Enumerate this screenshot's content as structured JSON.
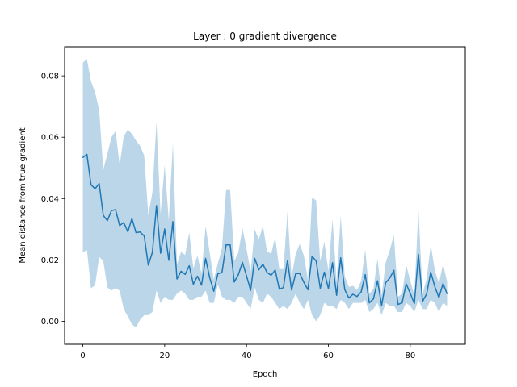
{
  "chart_data": {
    "type": "line",
    "title": "Layer : 0 gradient divergence",
    "xlabel": "Epoch",
    "ylabel": "Mean distance from true gradient",
    "xlim": [
      -4.45,
      93.45
    ],
    "ylim": [
      -0.0075,
      0.0895
    ],
    "xticks": [
      0,
      20,
      40,
      60,
      80
    ],
    "xtick_labels": [
      "0",
      "20",
      "40",
      "60",
      "80"
    ],
    "yticks": [
      0.0,
      0.02,
      0.04,
      0.06,
      0.08
    ],
    "ytick_labels": [
      "0.00",
      "0.02",
      "0.04",
      "0.06",
      "0.08"
    ],
    "grid": false,
    "colors": {
      "line": "#1f77b4",
      "band": "#1f77b4",
      "band_opacity": 0.3
    },
    "x": [
      0,
      1,
      2,
      3,
      4,
      5,
      6,
      7,
      8,
      9,
      10,
      11,
      12,
      13,
      14,
      15,
      16,
      17,
      18,
      19,
      20,
      21,
      22,
      23,
      24,
      25,
      26,
      27,
      28,
      29,
      30,
      31,
      32,
      33,
      34,
      35,
      36,
      37,
      38,
      39,
      40,
      41,
      42,
      43,
      44,
      45,
      46,
      47,
      48,
      49,
      50,
      51,
      52,
      53,
      54,
      55,
      56,
      57,
      58,
      59,
      60,
      61,
      62,
      63,
      64,
      65,
      66,
      67,
      68,
      69,
      70,
      71,
      72,
      73,
      74,
      75,
      76,
      77,
      78,
      79,
      80,
      81,
      82,
      83,
      84,
      85,
      86,
      87,
      88,
      89
    ],
    "series": [
      {
        "values": [
          0.0534,
          0.0544,
          0.0445,
          0.0432,
          0.0449,
          0.0345,
          0.0328,
          0.0361,
          0.0364,
          0.0312,
          0.0322,
          0.0292,
          0.0335,
          0.0289,
          0.0291,
          0.0278,
          0.0183,
          0.0225,
          0.0377,
          0.0222,
          0.0301,
          0.0199,
          0.0325,
          0.0138,
          0.0163,
          0.0153,
          0.0181,
          0.0121,
          0.0147,
          0.0118,
          0.0205,
          0.0142,
          0.0098,
          0.0155,
          0.0159,
          0.0249,
          0.0249,
          0.0128,
          0.0152,
          0.0192,
          0.0148,
          0.0101,
          0.0205,
          0.0168,
          0.0186,
          0.0159,
          0.015,
          0.0167,
          0.0105,
          0.011,
          0.0199,
          0.0102,
          0.0155,
          0.0156,
          0.0127,
          0.0103,
          0.0212,
          0.0197,
          0.0108,
          0.016,
          0.0107,
          0.0191,
          0.0085,
          0.0207,
          0.0103,
          0.0076,
          0.0088,
          0.0081,
          0.0096,
          0.0152,
          0.006,
          0.0073,
          0.0132,
          0.0052,
          0.0126,
          0.0141,
          0.0166,
          0.0055,
          0.006,
          0.0122,
          0.0091,
          0.0058,
          0.0218,
          0.0065,
          0.0089,
          0.016,
          0.0113,
          0.0077,
          0.0123,
          0.009
        ],
        "lower": [
          0.0225,
          0.0233,
          0.0107,
          0.0118,
          0.021,
          0.0196,
          0.011,
          0.01,
          0.0108,
          0.01,
          0.004,
          0.0015,
          -0.001,
          -0.002,
          0.0005,
          0.002,
          0.002,
          0.003,
          0.01,
          0.006,
          0.008,
          0.007,
          0.007,
          0.009,
          0.01,
          0.009,
          0.007,
          0.007,
          0.008,
          0.008,
          0.01,
          0.006,
          0.006,
          0.012,
          0.008,
          0.007,
          0.007,
          0.006,
          0.008,
          0.008,
          0.006,
          0.004,
          0.011,
          0.007,
          0.006,
          0.009,
          0.008,
          0.006,
          0.004,
          0.005,
          0.004,
          0.006,
          0.009,
          0.006,
          0.004,
          0.007,
          0.002,
          0.0,
          0.002,
          0.006,
          0.005,
          0.005,
          0.004,
          0.007,
          0.006,
          0.004,
          0.006,
          0.006,
          0.006,
          0.007,
          0.003,
          0.004,
          0.006,
          0.002,
          0.006,
          0.005,
          0.005,
          0.003,
          0.003,
          0.006,
          0.005,
          0.003,
          0.007,
          0.004,
          0.004,
          0.007,
          0.006,
          0.003,
          0.006,
          0.005
        ],
        "upper": [
          0.0843,
          0.0855,
          0.0782,
          0.0746,
          0.0688,
          0.0494,
          0.0546,
          0.06,
          0.062,
          0.051,
          0.0603,
          0.0625,
          0.0611,
          0.0589,
          0.0572,
          0.054,
          0.0346,
          0.042,
          0.065,
          0.035,
          0.051,
          0.0328,
          0.058,
          0.0186,
          0.0226,
          0.0216,
          0.029,
          0.0172,
          0.0214,
          0.0156,
          0.031,
          0.0224,
          0.0136,
          0.019,
          0.0238,
          0.0428,
          0.0428,
          0.0196,
          0.0224,
          0.0304,
          0.0236,
          0.0162,
          0.03,
          0.0266,
          0.0312,
          0.0228,
          0.022,
          0.0274,
          0.017,
          0.017,
          0.0358,
          0.0144,
          0.022,
          0.0252,
          0.0214,
          0.0136,
          0.0404,
          0.0394,
          0.0196,
          0.026,
          0.0164,
          0.0332,
          0.013,
          0.0344,
          0.0146,
          0.0112,
          0.0116,
          0.0102,
          0.0132,
          0.0234,
          0.009,
          0.0106,
          0.0204,
          0.0084,
          0.0192,
          0.0232,
          0.0282,
          0.008,
          0.009,
          0.0184,
          0.0132,
          0.0086,
          0.0366,
          0.009,
          0.0138,
          0.025,
          0.0166,
          0.0124,
          0.0186,
          0.013
        ]
      }
    ]
  }
}
